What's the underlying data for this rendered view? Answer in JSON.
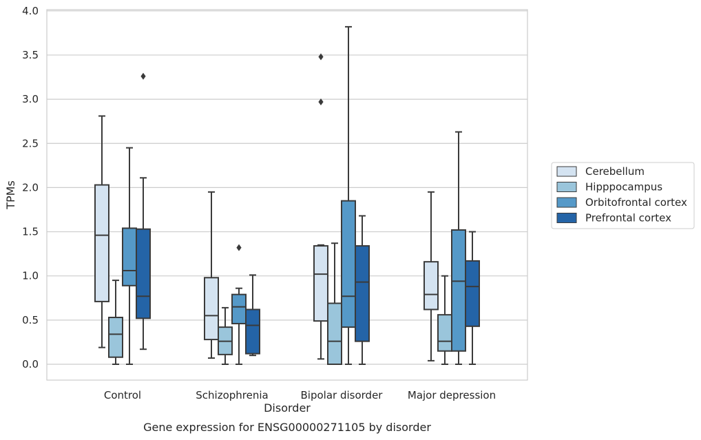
{
  "chart_data": {
    "type": "box",
    "caption": "Gene expression for ENSG00000271105 by disorder",
    "xlabel": "Disorder",
    "ylabel": "TPMs",
    "ylim": [
      -0.18,
      4.02
    ],
    "yticks": [
      "0.0",
      "0.5",
      "1.0",
      "1.5",
      "2.0",
      "2.5",
      "3.0",
      "3.5",
      "4.0"
    ],
    "ytick_values": [
      0,
      0.5,
      1.0,
      1.5,
      2.0,
      2.5,
      3.0,
      3.5,
      4.0
    ],
    "grid": true,
    "legend_position": "right",
    "categories": [
      "Control",
      "Schizophrenia",
      "Bipolar disorder",
      "Major depression"
    ],
    "series": [
      {
        "name": "Cerebellum",
        "color": "#d4e3f1",
        "boxes": [
          {
            "whisker_low": 0.19,
            "q1": 0.71,
            "median": 1.46,
            "q3": 2.03,
            "whisker_high": 2.81,
            "outliers": []
          },
          {
            "whisker_low": 0.07,
            "q1": 0.28,
            "median": 0.55,
            "q3": 0.98,
            "whisker_high": 1.95,
            "outliers": []
          },
          {
            "whisker_low": 0.06,
            "q1": 0.49,
            "median": 1.02,
            "q3": 1.34,
            "whisker_high": 1.35,
            "outliers": [
              2.97,
              3.48
            ]
          },
          {
            "whisker_low": 0.04,
            "q1": 0.62,
            "median": 0.79,
            "q3": 1.16,
            "whisker_high": 1.95,
            "outliers": []
          }
        ]
      },
      {
        "name": "Hipppocampus",
        "color": "#9ac5db",
        "boxes": [
          {
            "whisker_low": 0.0,
            "q1": 0.08,
            "median": 0.34,
            "q3": 0.53,
            "whisker_high": 0.95,
            "outliers": []
          },
          {
            "whisker_low": 0.0,
            "q1": 0.11,
            "median": 0.26,
            "q3": 0.42,
            "whisker_high": 0.64,
            "outliers": []
          },
          {
            "whisker_low": 0.0,
            "q1": 0.0,
            "median": 0.26,
            "q3": 0.69,
            "whisker_high": 1.37,
            "outliers": []
          },
          {
            "whisker_low": 0.0,
            "q1": 0.15,
            "median": 0.26,
            "q3": 0.56,
            "whisker_high": 1.0,
            "outliers": []
          }
        ]
      },
      {
        "name": "Orbitofrontal cortex",
        "color": "#5599c8",
        "boxes": [
          {
            "whisker_low": 0.0,
            "q1": 0.89,
            "median": 1.06,
            "q3": 1.54,
            "whisker_high": 2.45,
            "outliers": []
          },
          {
            "whisker_low": 0.0,
            "q1": 0.46,
            "median": 0.65,
            "q3": 0.79,
            "whisker_high": 0.86,
            "outliers": [
              1.32
            ]
          },
          {
            "whisker_low": 0.0,
            "q1": 0.42,
            "median": 0.77,
            "q3": 1.85,
            "whisker_high": 3.82,
            "outliers": []
          },
          {
            "whisker_low": 0.0,
            "q1": 0.15,
            "median": 0.94,
            "q3": 1.52,
            "whisker_high": 2.63,
            "outliers": []
          }
        ]
      },
      {
        "name": "Prefrontal cortex",
        "color": "#2464a7",
        "boxes": [
          {
            "whisker_low": 0.17,
            "q1": 0.52,
            "median": 0.77,
            "q3": 1.53,
            "whisker_high": 2.11,
            "outliers": [
              3.26
            ]
          },
          {
            "whisker_low": 0.1,
            "q1": 0.12,
            "median": 0.44,
            "q3": 0.62,
            "whisker_high": 1.01,
            "outliers": []
          },
          {
            "whisker_low": 0.0,
            "q1": 0.26,
            "median": 0.93,
            "q3": 1.34,
            "whisker_high": 1.68,
            "outliers": []
          },
          {
            "whisker_low": 0.0,
            "q1": 0.43,
            "median": 0.88,
            "q3": 1.17,
            "whisker_high": 1.5,
            "outliers": []
          }
        ]
      }
    ]
  }
}
